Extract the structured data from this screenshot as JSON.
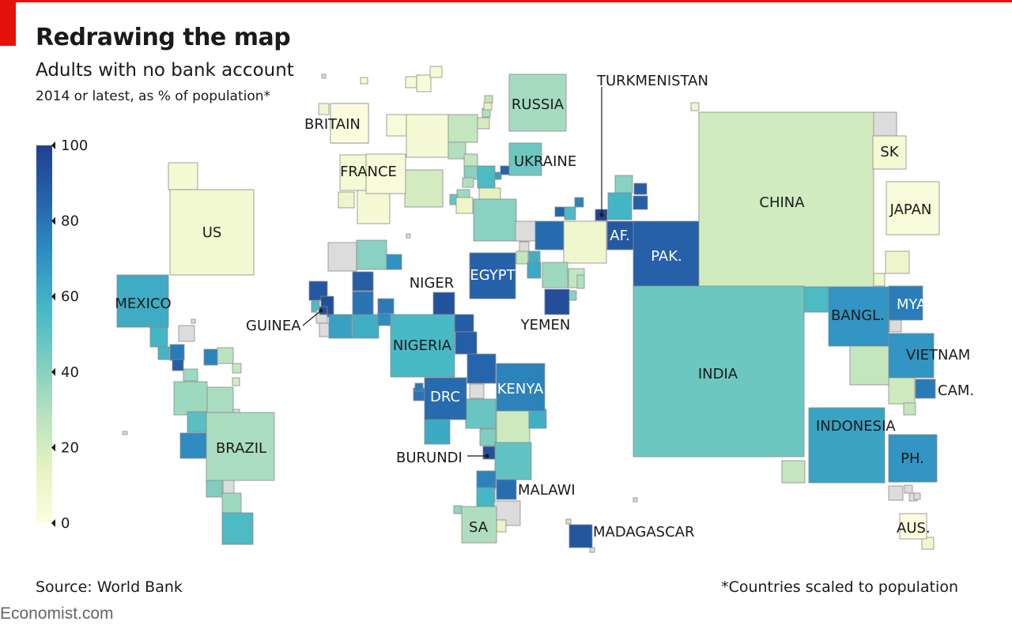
{
  "title": "Redrawing the map",
  "subtitle": "Adults with no bank account",
  "subnote": "2014 or latest, as % of population*",
  "source": "Source: World Bank",
  "footnote": "*Countries scaled to population",
  "watermark": "Economist.com",
  "colors": {
    "accent": "#e3120b",
    "scale": [
      "#fdfde0",
      "#e6f3c0",
      "#b8e2bf",
      "#7dcdc0",
      "#45b7c5",
      "#2e8ec2",
      "#2563ab",
      "#22408d"
    ],
    "nodata": "#dcdcdc"
  },
  "legend": {
    "ticks": [
      "100",
      "80",
      "60",
      "40",
      "20",
      "0"
    ]
  },
  "chart_data": {
    "type": "cartogram",
    "title": "Redrawing the map",
    "subtitle": "Adults with no bank account",
    "note": "2014 or latest, as % of population*",
    "value_unit": "% of adults with no bank account",
    "scale_range": [
      0,
      100
    ],
    "countries": [
      {
        "name": "US",
        "label": "US",
        "value": 7
      },
      {
        "name": "Mexico",
        "label": "MEXICO",
        "value": 61
      },
      {
        "name": "Brazil",
        "label": "BRAZIL",
        "value": 32
      },
      {
        "name": "Britain",
        "label": "BRITAIN",
        "value": 1
      },
      {
        "name": "France",
        "label": "FRANCE",
        "value": 3
      },
      {
        "name": "Russia",
        "label": "RUSSIA",
        "value": 33
      },
      {
        "name": "Ukraine",
        "label": "UKRAINE",
        "value": 47
      },
      {
        "name": "Turkmenistan",
        "label": "TURKMENISTAN",
        "value": 98
      },
      {
        "name": "Afghanistan",
        "label": "AF.",
        "value": 90
      },
      {
        "name": "Pakistan",
        "label": "PAK.",
        "value": 87
      },
      {
        "name": "China",
        "label": "CHINA",
        "value": 21
      },
      {
        "name": "South Korea",
        "label": "SK",
        "value": 6
      },
      {
        "name": "Japan",
        "label": "JAPAN",
        "value": 3
      },
      {
        "name": "Egypt",
        "label": "EGYPT",
        "value": 86
      },
      {
        "name": "Niger",
        "label": "NIGER",
        "value": 93
      },
      {
        "name": "Yemen",
        "label": "YEMEN",
        "value": 94
      },
      {
        "name": "Guinea",
        "label": "GUINEA",
        "value": 93
      },
      {
        "name": "Nigeria",
        "label": "NIGERIA",
        "value": 56
      },
      {
        "name": "DRC",
        "label": "DRC",
        "value": 83
      },
      {
        "name": "Kenya",
        "label": "KENYA",
        "value": 75
      },
      {
        "name": "Burundi",
        "label": "BURUNDI",
        "value": 93
      },
      {
        "name": "Malawi",
        "label": "MALAWI",
        "value": 82
      },
      {
        "name": "South Africa",
        "label": "SA",
        "value": 31
      },
      {
        "name": "Madagascar",
        "label": "MADAGASCAR",
        "value": 91
      },
      {
        "name": "India",
        "label": "INDIA",
        "value": 47
      },
      {
        "name": "Bangladesh",
        "label": "BANGL.",
        "value": 69
      },
      {
        "name": "Myanmar",
        "label": "MYANMAR",
        "value": 77
      },
      {
        "name": "Vietnam",
        "label": "VIETNAM",
        "value": 69
      },
      {
        "name": "Cambodia",
        "label": "CAM.",
        "value": 78
      },
      {
        "name": "Indonesia",
        "label": "INDONESIA",
        "value": 64
      },
      {
        "name": "Philippines",
        "label": "PH.",
        "value": 69
      },
      {
        "name": "Australia",
        "label": "AUS.",
        "value": 1
      }
    ]
  }
}
